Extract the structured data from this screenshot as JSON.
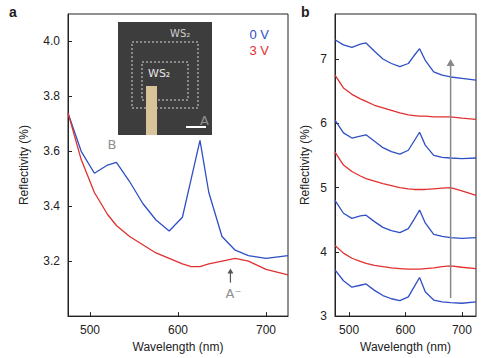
{
  "chart_data": [
    {
      "type": "line",
      "title": "a",
      "x_label": "Wavelength (nm)",
      "y_label": "Reflectivity (%)",
      "x": [
        475,
        490,
        505,
        520,
        530,
        545,
        560,
        575,
        590,
        605,
        615,
        625,
        635,
        650,
        665,
        680,
        700,
        725
      ],
      "xlim": [
        475,
        725
      ],
      "xticks": [
        500,
        600,
        700
      ],
      "ylim": [
        3.0,
        4.1
      ],
      "yticks": [
        3.2,
        3.4,
        3.6,
        3.8,
        {
          "value": 4,
          "label": "4.0"
        }
      ],
      "legend": "upper right",
      "series": [
        {
          "name": "0 V",
          "color": "#2f4fc4",
          "values": [
            3.74,
            3.6,
            3.52,
            3.55,
            3.56,
            3.49,
            3.41,
            3.35,
            3.31,
            3.36,
            3.5,
            3.64,
            3.45,
            3.29,
            3.24,
            3.22,
            3.21,
            3.22
          ]
        },
        {
          "name": "3 V",
          "color": "#e03030",
          "values": [
            3.74,
            3.57,
            3.45,
            3.37,
            3.33,
            3.29,
            3.26,
            3.23,
            3.21,
            3.19,
            3.18,
            3.18,
            3.19,
            3.2,
            3.21,
            3.2,
            3.17,
            3.15
          ]
        }
      ],
      "annotations": [
        {
          "text": "B",
          "x": 525,
          "y": 3.6,
          "color": "#909090"
        },
        {
          "text": "A",
          "x": 630,
          "y": 3.69,
          "color": "#909090"
        },
        {
          "text": "A⁻",
          "x": 663,
          "y": 3.06,
          "color": "#909090",
          "marker": "arrow"
        }
      ],
      "inset": {
        "labels": [
          "WS₂",
          "WS₂"
        ]
      }
    },
    {
      "type": "line",
      "title": "b",
      "x_label": "Wavelength (nm)",
      "y_label": "Reflectivity (%)",
      "x": [
        475,
        490,
        505,
        520,
        530,
        545,
        560,
        575,
        590,
        605,
        615,
        625,
        635,
        650,
        665,
        680,
        700,
        725
      ],
      "xlim": [
        475,
        725
      ],
      "xticks": [
        500,
        600,
        700
      ],
      "ylim": [
        3,
        7.7
      ],
      "yticks": [
        3,
        4,
        5,
        6,
        7
      ],
      "series": [
        {
          "color": "#2f4fc4",
          "values": [
            3.72,
            3.55,
            3.45,
            3.48,
            3.5,
            3.4,
            3.32,
            3.27,
            3.24,
            3.3,
            3.45,
            3.6,
            3.38,
            3.25,
            3.22,
            3.21,
            3.2,
            3.22
          ]
        },
        {
          "color": "#e03030",
          "values": [
            4.1,
            3.98,
            3.9,
            3.85,
            3.82,
            3.79,
            3.77,
            3.75,
            3.74,
            3.73,
            3.73,
            3.73,
            3.74,
            3.75,
            3.77,
            3.78,
            3.76,
            3.74
          ]
        },
        {
          "color": "#2f4fc4",
          "values": [
            4.8,
            4.6,
            4.52,
            4.56,
            4.57,
            4.47,
            4.38,
            4.33,
            4.3,
            4.36,
            4.5,
            4.65,
            4.45,
            4.27,
            4.24,
            4.22,
            4.21,
            4.22
          ]
        },
        {
          "color": "#e03030",
          "values": [
            5.55,
            5.35,
            5.25,
            5.18,
            5.14,
            5.1,
            5.06,
            5.03,
            5.0,
            4.98,
            4.97,
            4.97,
            4.97,
            4.98,
            4.99,
            5.0,
            4.95,
            4.88
          ]
        },
        {
          "color": "#2f4fc4",
          "values": [
            6.05,
            5.85,
            5.77,
            5.8,
            5.82,
            5.72,
            5.62,
            5.56,
            5.52,
            5.58,
            5.72,
            5.86,
            5.66,
            5.5,
            5.47,
            5.46,
            5.45,
            5.46
          ]
        },
        {
          "color": "#e03030",
          "values": [
            6.75,
            6.55,
            6.45,
            6.38,
            6.34,
            6.28,
            6.24,
            6.2,
            6.16,
            6.13,
            6.12,
            6.11,
            6.11,
            6.1,
            6.1,
            6.1,
            6.08,
            6.06
          ]
        },
        {
          "color": "#2f4fc4",
          "values": [
            7.3,
            7.22,
            7.18,
            7.23,
            7.25,
            7.12,
            7.0,
            6.93,
            6.88,
            6.93,
            7.05,
            7.16,
            6.98,
            6.8,
            6.75,
            6.72,
            6.7,
            6.67
          ]
        }
      ]
    }
  ]
}
